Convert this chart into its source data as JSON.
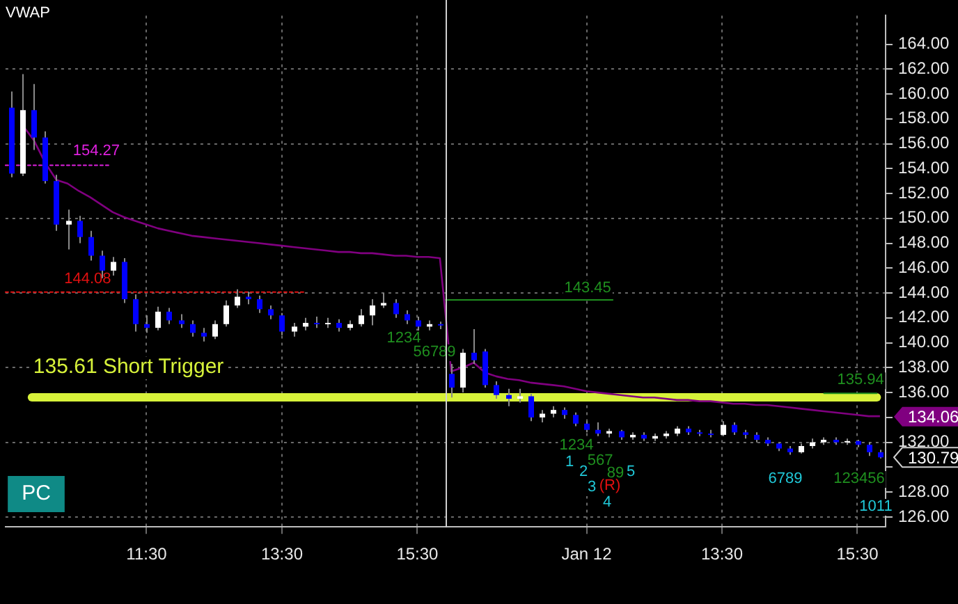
{
  "chart_data": {
    "type": "candlestick",
    "title": "VWAP",
    "categories": [
      null,
      null,
      null,
      null,
      null,
      null,
      null,
      null,
      null,
      null,
      null,
      null,
      "11:30",
      null,
      null,
      null,
      null,
      null,
      null,
      null,
      null,
      null,
      null,
      null,
      "13:30",
      null,
      null,
      null,
      null,
      null,
      null,
      null,
      null,
      null,
      null,
      null,
      "15:30",
      null,
      null,
      null,
      null,
      null,
      null,
      null,
      null,
      null,
      null,
      null,
      null,
      null,
      null,
      "Jan 12",
      null,
      null,
      null,
      null,
      null,
      null,
      null,
      null,
      null,
      null,
      null,
      "13:30",
      null,
      null,
      null,
      null,
      null,
      null,
      null,
      null,
      null,
      null,
      null,
      "15:30",
      null,
      null
    ],
    "ohlc": [
      [
        158.9,
        160.2,
        153.3,
        153.6
      ],
      [
        153.6,
        161.6,
        153.4,
        158.7
      ],
      [
        158.7,
        160.8,
        155.5,
        156.5
      ],
      [
        156.5,
        157.0,
        152.8,
        153.0
      ],
      [
        153.0,
        153.5,
        149.0,
        149.5
      ],
      [
        149.5,
        150.7,
        147.5,
        149.8
      ],
      [
        149.8,
        150.2,
        148.0,
        148.5
      ],
      [
        148.5,
        149.0,
        146.6,
        147.0
      ],
      [
        147.0,
        147.4,
        145.2,
        145.8
      ],
      [
        145.8,
        146.9,
        145.4,
        146.5
      ],
      [
        146.5,
        146.8,
        143.2,
        143.5
      ],
      [
        143.5,
        143.9,
        140.9,
        141.5
      ],
      [
        141.5,
        142.2,
        140.8,
        141.2
      ],
      [
        141.2,
        142.9,
        141.0,
        142.5
      ],
      [
        142.5,
        142.8,
        141.5,
        141.8
      ],
      [
        141.8,
        142.3,
        141.2,
        141.5
      ],
      [
        141.5,
        141.8,
        140.5,
        140.8
      ],
      [
        140.8,
        141.2,
        140.1,
        140.5
      ],
      [
        140.5,
        141.8,
        140.3,
        141.5
      ],
      [
        141.5,
        143.4,
        141.3,
        143.0
      ],
      [
        143.0,
        144.3,
        142.8,
        143.7
      ],
      [
        143.7,
        144.1,
        143.1,
        143.5
      ],
      [
        143.5,
        143.8,
        142.4,
        142.7
      ],
      [
        142.7,
        143.0,
        141.9,
        142.2
      ],
      [
        142.2,
        142.4,
        140.6,
        140.9
      ],
      [
        140.9,
        141.6,
        140.5,
        141.3
      ],
      [
        141.3,
        142.0,
        141.0,
        141.6
      ],
      [
        141.6,
        142.1,
        141.2,
        141.5
      ],
      [
        141.5,
        142.0,
        141.2,
        141.6
      ],
      [
        141.6,
        141.9,
        140.9,
        141.2
      ],
      [
        141.2,
        141.8,
        141.0,
        141.5
      ],
      [
        141.5,
        142.7,
        141.3,
        142.2
      ],
      [
        142.2,
        143.5,
        141.4,
        143.0
      ],
      [
        143.0,
        144.0,
        142.8,
        143.2
      ],
      [
        143.2,
        143.5,
        142.0,
        142.3
      ],
      [
        142.3,
        142.6,
        141.5,
        141.8
      ],
      [
        141.8,
        142.1,
        140.9,
        141.3
      ],
      [
        141.3,
        141.8,
        141.0,
        141.5
      ],
      [
        141.5,
        141.7,
        141.1,
        141.4
      ],
      [
        137.5,
        138.3,
        135.6,
        136.4
      ],
      [
        136.4,
        139.5,
        136.0,
        139.2
      ],
      [
        139.2,
        141.1,
        138.3,
        138.6
      ],
      [
        139.3,
        139.5,
        136.4,
        136.6
      ],
      [
        136.6,
        136.9,
        135.5,
        135.8
      ],
      [
        135.8,
        136.3,
        134.9,
        135.5
      ],
      [
        135.5,
        136.3,
        135.2,
        135.7
      ],
      [
        135.7,
        135.9,
        133.7,
        134.0
      ],
      [
        134.0,
        134.6,
        133.6,
        134.3
      ],
      [
        134.3,
        134.9,
        134.0,
        134.6
      ],
      [
        134.6,
        134.8,
        133.9,
        134.2
      ],
      [
        134.2,
        134.4,
        133.3,
        133.5
      ],
      [
        133.5,
        133.7,
        132.8,
        133.0
      ],
      [
        133.0,
        133.6,
        132.5,
        132.7
      ],
      [
        132.7,
        133.1,
        132.4,
        132.9
      ],
      [
        132.9,
        133.0,
        132.2,
        132.4
      ],
      [
        132.4,
        132.8,
        132.2,
        132.6
      ],
      [
        132.6,
        132.8,
        132.1,
        132.3
      ],
      [
        132.3,
        132.7,
        132.1,
        132.5
      ],
      [
        132.5,
        132.9,
        132.3,
        132.7
      ],
      [
        132.7,
        133.3,
        132.5,
        133.1
      ],
      [
        133.1,
        133.3,
        132.6,
        132.8
      ],
      [
        132.8,
        133.0,
        132.5,
        132.7
      ],
      [
        132.7,
        133.0,
        132.4,
        132.6
      ],
      [
        132.6,
        133.7,
        132.5,
        133.4
      ],
      [
        133.4,
        133.6,
        132.6,
        132.8
      ],
      [
        132.8,
        133.0,
        132.3,
        132.6
      ],
      [
        132.6,
        132.8,
        132.0,
        132.2
      ],
      [
        132.2,
        132.4,
        131.7,
        131.9
      ],
      [
        131.9,
        132.0,
        131.3,
        131.5
      ],
      [
        131.5,
        131.7,
        131.0,
        131.2
      ],
      [
        131.2,
        131.9,
        131.1,
        131.7
      ],
      [
        131.7,
        132.3,
        131.5,
        132.0
      ],
      [
        132.0,
        132.4,
        131.8,
        132.2
      ],
      [
        132.2,
        132.4,
        131.8,
        132.0
      ],
      [
        132.0,
        132.3,
        131.8,
        132.1
      ],
      [
        132.1,
        132.2,
        131.6,
        131.8
      ],
      [
        131.8,
        132.0,
        130.9,
        131.2
      ],
      [
        131.2,
        131.4,
        130.7,
        130.79
      ]
    ],
    "series": [
      {
        "type": "line",
        "color": "#800080",
        "values": [
          null,
          157.5,
          156.3,
          154.5,
          153.1,
          152.8,
          152.2,
          151.7,
          151.1,
          150.5,
          150.1,
          149.8,
          149.5,
          149.2,
          149.0,
          148.8,
          148.6,
          148.5,
          148.4,
          148.3,
          148.2,
          148.1,
          148.0,
          147.9,
          147.8,
          147.7,
          147.6,
          147.5,
          147.4,
          147.3,
          147.3,
          147.2,
          147.2,
          147.1,
          147.0,
          147.0,
          146.9,
          146.9,
          146.8,
          137.7,
          138.0,
          138.4,
          137.6,
          137.3,
          137.1,
          137.0,
          136.8,
          136.7,
          136.6,
          136.5,
          136.3,
          136.1,
          136.0,
          135.9,
          135.8,
          135.7,
          135.6,
          135.6,
          135.5,
          135.4,
          135.4,
          135.3,
          135.3,
          135.2,
          135.1,
          135.1,
          135.0,
          135.0,
          134.9,
          134.8,
          134.7,
          134.6,
          134.5,
          134.4,
          134.3,
          134.2,
          134.1,
          134.1
        ]
      }
    ],
    "ylim": [
      125.2,
      166.3
    ],
    "yticks": [
      {
        "value": 126,
        "label": "126.00"
      },
      {
        "value": 128,
        "label": "128.00"
      },
      {
        "value": 130,
        "label": null
      },
      {
        "value": 132,
        "label": "132.00"
      },
      {
        "value": 134,
        "label": null
      },
      {
        "value": 136,
        "label": "136.00"
      },
      {
        "value": 138,
        "label": "138.00"
      },
      {
        "value": 140,
        "label": "140.00"
      },
      {
        "value": 142,
        "label": "142.00"
      },
      {
        "value": 144,
        "label": "144.00"
      },
      {
        "value": 146,
        "label": "146.00"
      },
      {
        "value": 148,
        "label": "148.00"
      },
      {
        "value": 150,
        "label": "150.00"
      },
      {
        "value": 152,
        "label": "152.00"
      },
      {
        "value": 154,
        "label": "154.00"
      },
      {
        "value": 156,
        "label": "156.00"
      },
      {
        "value": 158,
        "label": "158.00"
      },
      {
        "value": 160,
        "label": "160.00"
      },
      {
        "value": 162,
        "label": "162.00"
      },
      {
        "value": 164,
        "label": "164.00"
      }
    ],
    "grid": true,
    "ref_lines": [
      {
        "axis": "y",
        "value": 135.61,
        "label": "135.61 Short Trigger",
        "color": "#d7f23a"
      },
      {
        "axis": "y",
        "value": 144.08,
        "label": "144.08",
        "color": "#e01010",
        "line_style": "dotted"
      },
      {
        "axis": "y",
        "value": 143.45,
        "label": "143.45",
        "color": "#1f8f1f"
      },
      {
        "axis": "y",
        "value": 135.94,
        "label": "135.94",
        "color": "#1f8f1f"
      },
      {
        "axis": "y",
        "value": 154.27,
        "label": "154.27",
        "color": "#e020e0",
        "line_style": "dotted"
      }
    ],
    "annotations": [
      "PC",
      "134.06",
      "130.79",
      "1234",
      "56789",
      "1234",
      "567",
      "89",
      "1",
      "2",
      "3",
      "(R)",
      "4",
      "5",
      "6789",
      "123456",
      "1011"
    ]
  }
}
